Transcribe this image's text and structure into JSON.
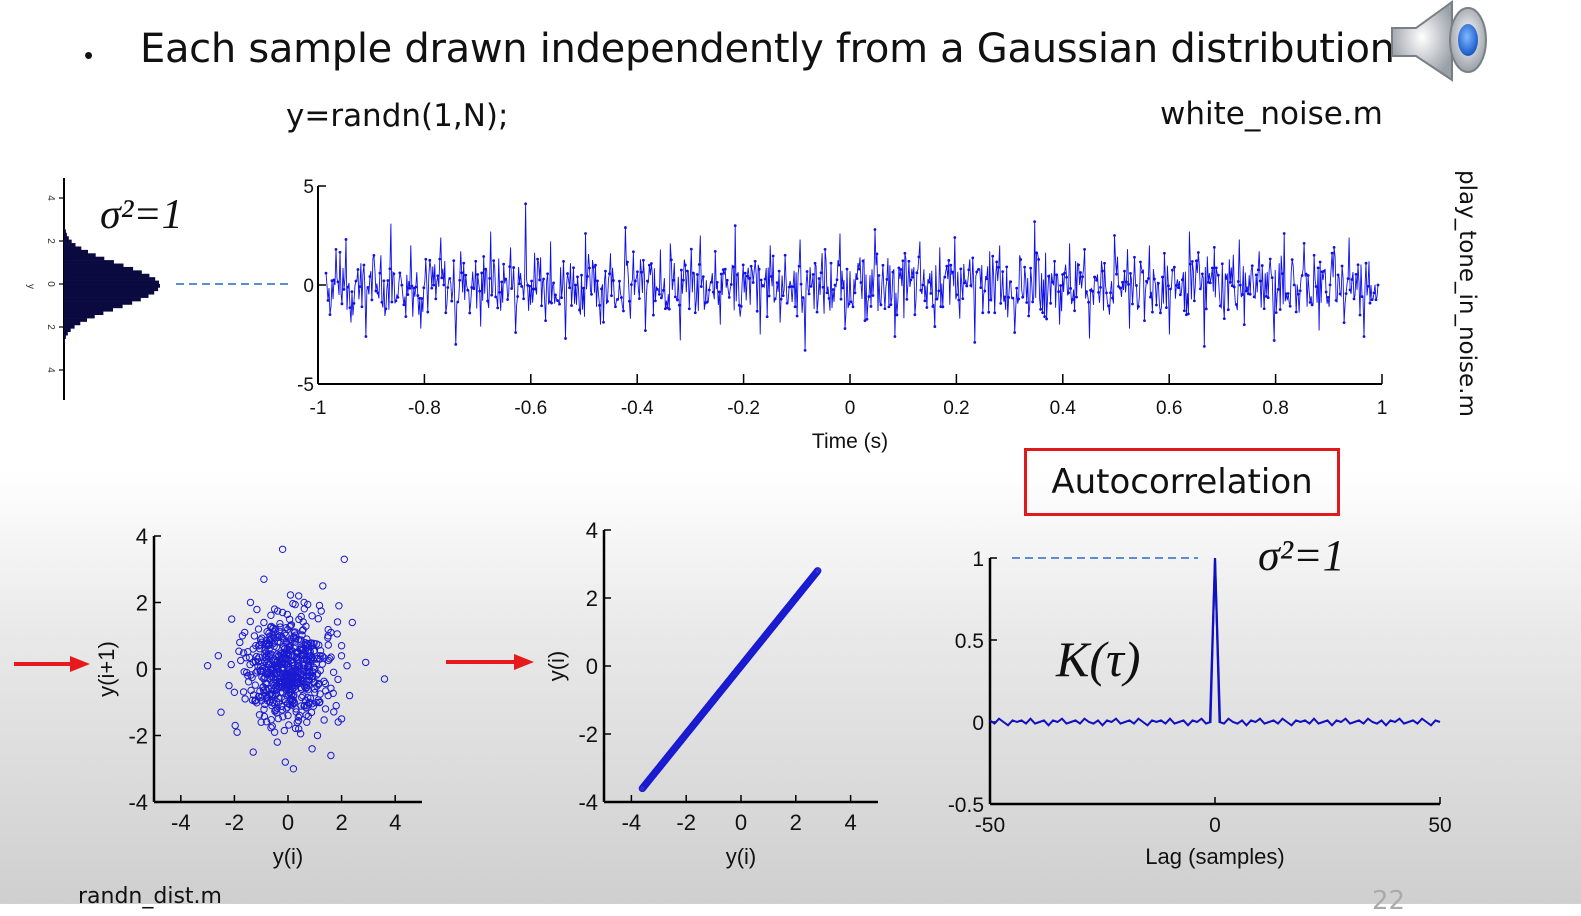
{
  "slide": {
    "bullet": "Each sample drawn independently from a Gaussian distribution",
    "code_left": "y=randn(1,N);",
    "code_right": "white_noise.m",
    "side_label": "play_tone_in_noise.m",
    "autocorr_label": "Autocorrelation",
    "variance_label": "σ²=1",
    "variance_label_2": "σ²=1",
    "k_tau_label": "K(τ)",
    "footer_fragment": "randn_dist.m",
    "page_fragment": "22",
    "icons": [
      "speaker-icon",
      "red-arrow-icon"
    ]
  },
  "chart_data": [
    {
      "type": "line",
      "panel": "time-series",
      "title": "",
      "xlabel": "Time (s)",
      "ylabel": "",
      "xlim": [
        -1,
        1
      ],
      "ylim": [
        -5,
        5
      ],
      "xticks": [
        "-1",
        "-0.8",
        "-0.6",
        "-0.4",
        "-0.2",
        "0",
        "0.2",
        "0.4",
        "0.6",
        "0.8",
        "1"
      ],
      "yticks": [
        "-5",
        "0",
        "5"
      ],
      "marker": "dot",
      "color": "#1010e8",
      "series": [
        {
          "values": [
            0.6,
            -1.1,
            1.8,
            -0.4,
            2.3,
            -1.9,
            0.2,
            1.1,
            -2.6,
            0.7,
            -0.3,
            1.5,
            -1.2,
            3.1,
            -0.8,
            0.4,
            -1.6,
            2.0,
            -0.1,
            -2.2,
            1.3,
            0.9,
            -0.7,
            2.4,
            -1.4,
            0.1,
            -3.0,
            1.7,
            0.5,
            -0.9,
            1.2,
            -2.1,
            0.8,
            2.7,
            -0.6,
            -1.3,
            0.3,
            1.9,
            -2.4,
            0.6,
            4.1,
            -1.0,
            -0.2,
            1.4,
            -1.8,
            2.2,
            -0.5,
            0.9,
            -2.7,
            1.1,
            0.0,
            -1.5,
            2.6,
            -0.3,
            1.0,
            -2.0,
            0.7,
            1.6,
            -1.1,
            -0.4,
            2.9,
            -1.7,
            0.2,
            1.3,
            -2.3,
            0.5,
            -0.8,
            1.8,
            -1.2,
            2.1,
            -0.6,
            -2.8,
            1.0,
            0.4,
            -1.4,
            2.5,
            -0.9,
            0.1,
            1.7,
            -2.0,
            0.8,
            -0.2,
            3.0,
            -1.6,
            0.6,
            -1.0,
            1.2,
            -2.5,
            0.3,
            2.0,
            -0.7,
            -1.9,
            1.5,
            0.2,
            -1.1,
            2.3,
            -3.3,
            0.9,
            1.1,
            -0.5,
            1.8,
            -1.3,
            0.0,
            2.6,
            -2.2,
            0.7,
            -0.4,
            1.4,
            -1.8,
            0.5,
            2.8,
            -0.9,
            -1.2,
            1.0,
            -2.6,
            0.3,
            1.6,
            -0.1,
            -1.5,
            2.2,
            -0.8,
            0.6,
            -2.1,
            1.9,
            0.4,
            -1.0,
            2.4,
            -1.7,
            0.1,
            1.3,
            -2.9,
            0.8,
            -0.3,
            1.7,
            -1.4,
            2.0,
            -0.6,
            0.2,
            -2.4,
            1.5,
            0.9,
            -1.1,
            3.2,
            -0.7,
            -1.6,
            0.5,
            1.2,
            -2.0,
            0.6,
            2.1,
            -1.3,
            0.0,
            1.8,
            -2.7,
            0.4,
            -0.9,
            1.1,
            -1.5,
            2.5,
            -0.2,
            0.7,
            -2.2,
            1.4,
            -0.5,
            -1.8,
            2.0,
            0.3,
            -1.0,
            1.6,
            -2.5,
            0.9,
            0.2,
            -1.3,
            2.7,
            -0.8,
            1.0,
            -3.1,
            0.6,
            1.9,
            -0.4,
            -1.7,
            1.3,
            -0.1,
            2.3,
            -2.0,
            0.5,
            -0.6,
            1.7,
            -1.2,
            0.8,
            -2.8,
            1.1,
            2.6,
            -0.9,
            0.0,
            -1.4,
            2.1,
            -0.3,
            1.5,
            -2.3,
            0.7,
            -1.1,
            1.9,
            0.4,
            -1.9,
            2.4,
            -0.7,
            0.1,
            -2.6,
            1.2,
            -0.4
          ]
        }
      ]
    },
    {
      "type": "bar",
      "panel": "histogram",
      "orientation": "horizontal",
      "xticks": [
        "4",
        "2",
        "0",
        "2",
        "4"
      ],
      "ylabel": "y",
      "color": "#0a0a40",
      "values": [
        0.01,
        0.02,
        0.03,
        0.05,
        0.08,
        0.12,
        0.18,
        0.25,
        0.33,
        0.42,
        0.52,
        0.62,
        0.72,
        0.81,
        0.89,
        0.95,
        0.99,
        1.0,
        0.98,
        0.94,
        0.88,
        0.8,
        0.71,
        0.61,
        0.51,
        0.41,
        0.32,
        0.24,
        0.17,
        0.11,
        0.07,
        0.04,
        0.02,
        0.01
      ]
    },
    {
      "type": "scatter",
      "panel": "y(i+1)-vs-y(i)",
      "xlabel": "y(i)",
      "ylabel": "y(i+1)",
      "xlim": [
        -5,
        5
      ],
      "ylim": [
        -4,
        4
      ],
      "xticks": [
        "-4",
        "-2",
        "0",
        "2",
        "4"
      ],
      "yticks": [
        "-4",
        "-2",
        "0",
        "2",
        "4"
      ],
      "marker": "circle",
      "color": "#1a1ad0",
      "description_points": "uncorrelated cloud centered at (0,0), spread ~±3",
      "points": [
        [
          -0.2,
          3.6
        ],
        [
          2.1,
          3.3
        ],
        [
          -0.9,
          2.7
        ],
        [
          1.3,
          2.5
        ],
        [
          0.4,
          2.2
        ],
        [
          -1.4,
          2.0
        ],
        [
          1.9,
          1.9
        ],
        [
          -0.5,
          1.8
        ],
        [
          0.9,
          1.6
        ],
        [
          -2.1,
          1.5
        ],
        [
          2.4,
          1.4
        ],
        [
          0.1,
          1.3
        ],
        [
          -1.1,
          1.2
        ],
        [
          1.6,
          1.1
        ],
        [
          -0.3,
          1.0
        ],
        [
          0.7,
          0.9
        ],
        [
          -1.8,
          0.8
        ],
        [
          2.0,
          0.7
        ],
        [
          -0.7,
          0.6
        ],
        [
          0.3,
          0.5
        ],
        [
          -2.6,
          0.4
        ],
        [
          1.2,
          0.4
        ],
        [
          -0.1,
          0.3
        ],
        [
          2.9,
          0.2
        ],
        [
          -1.3,
          0.2
        ],
        [
          0.6,
          0.1
        ],
        [
          -0.4,
          0.0
        ],
        [
          1.7,
          -0.1
        ],
        [
          -3.0,
          0.1
        ],
        [
          3.6,
          -0.3
        ],
        [
          0.2,
          -0.2
        ],
        [
          -0.9,
          -0.3
        ],
        [
          1.0,
          -0.4
        ],
        [
          -2.2,
          -0.5
        ],
        [
          0.5,
          -0.6
        ],
        [
          -0.2,
          -0.7
        ],
        [
          2.3,
          -0.8
        ],
        [
          -1.6,
          -0.9
        ],
        [
          0.8,
          -1.0
        ],
        [
          -0.6,
          -1.1
        ],
        [
          1.4,
          -1.2
        ],
        [
          -2.5,
          -1.3
        ],
        [
          0.0,
          -1.4
        ],
        [
          2.0,
          -1.5
        ],
        [
          -1.0,
          -1.6
        ],
        [
          0.4,
          -1.8
        ],
        [
          -1.9,
          -1.9
        ],
        [
          1.1,
          -2.0
        ],
        [
          -0.4,
          -2.2
        ],
        [
          0.9,
          -2.4
        ],
        [
          -1.3,
          -2.5
        ],
        [
          1.6,
          -2.6
        ],
        [
          -0.1,
          -2.8
        ],
        [
          0.2,
          -3.0
        ],
        [
          -0.8,
          0.4
        ],
        [
          0.5,
          0.6
        ],
        [
          -0.3,
          -0.4
        ],
        [
          1.2,
          0.3
        ],
        [
          -1.5,
          -0.2
        ],
        [
          0.1,
          0.9
        ],
        [
          -0.6,
          -0.8
        ],
        [
          0.9,
          -0.3
        ],
        [
          -1.2,
          0.7
        ],
        [
          1.5,
          1.0
        ],
        [
          0.3,
          -1.2
        ],
        [
          -0.9,
          1.4
        ],
        [
          0.7,
          -1.6
        ],
        [
          -2.0,
          -0.7
        ],
        [
          2.2,
          0.1
        ],
        [
          -0.2,
          1.7
        ],
        [
          0.4,
          -0.1
        ],
        [
          -1.7,
          1.0
        ],
        [
          1.8,
          -1.1
        ],
        [
          -0.5,
          -1.9
        ],
        [
          0.6,
          2.0
        ]
      ]
    },
    {
      "type": "scatter",
      "panel": "y(i)-vs-y(i)",
      "xlabel": "y(i)",
      "ylabel": "y(i)",
      "xlim": [
        -5,
        5
      ],
      "ylim": [
        -4,
        4
      ],
      "xticks": [
        "-4",
        "-2",
        "0",
        "2",
        "4"
      ],
      "yticks": [
        "-4",
        "-2",
        "0",
        "2",
        "4"
      ],
      "marker": "circle",
      "color": "#1a1ad0",
      "points_range": [
        -3.6,
        2.8
      ]
    },
    {
      "type": "line",
      "panel": "autocorrelation",
      "xlabel": "Lag (samples)",
      "ylabel": "",
      "xlim": [
        -50,
        50
      ],
      "ylim": [
        -0.5,
        1
      ],
      "xticks": [
        "-50",
        "0",
        "50"
      ],
      "yticks": [
        "-0.5",
        "0",
        "0.5",
        "1"
      ],
      "color": "#1010c0",
      "peak": {
        "lag": 0,
        "value": 1
      },
      "baseline_noise": [
        0.01,
        -0.01,
        0.02,
        0.0,
        -0.02,
        0.01,
        0.0,
        0.01,
        -0.01,
        0.02,
        -0.01,
        0.0,
        0.01,
        -0.02,
        0.01,
        0.0,
        0.02,
        -0.01,
        0.0,
        0.01,
        -0.01,
        0.02,
        0.0,
        -0.01,
        0.01,
        -0.02,
        0.01,
        0.0,
        0.02,
        -0.01,
        0.0,
        0.01,
        -0.01,
        0.02,
        0.0,
        -0.02,
        0.01,
        0.0,
        0.01,
        -0.01,
        0.02,
        -0.01,
        0.0,
        0.01,
        -0.02,
        0.01,
        0.0,
        0.02,
        -0.01,
        0.0,
        1.0,
        0.0,
        -0.01,
        0.02,
        0.0,
        -0.01,
        0.01,
        -0.02,
        0.01,
        0.0,
        0.02,
        -0.01,
        0.0,
        0.01,
        -0.01,
        0.02,
        0.0,
        -0.02,
        0.01,
        0.0,
        0.01,
        -0.01,
        0.02,
        -0.01,
        0.0,
        0.01,
        -0.02,
        0.01,
        0.0,
        0.02,
        -0.01,
        0.0,
        0.01,
        -0.01,
        0.02,
        0.0,
        -0.01,
        0.01,
        -0.02,
        0.01,
        0.0,
        0.02,
        -0.01,
        0.0,
        0.01,
        -0.01,
        0.02,
        0.0,
        -0.02,
        0.01,
        0.0
      ]
    }
  ]
}
